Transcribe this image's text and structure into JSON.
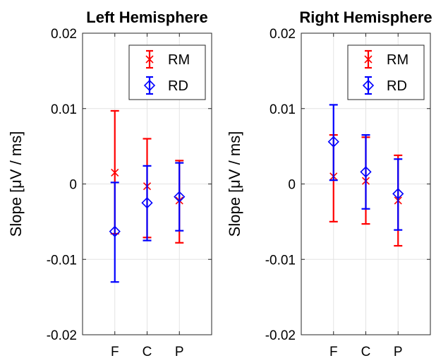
{
  "chart_data": [
    {
      "type": "scatter",
      "title": "Left Hemisphere",
      "ylabel": "Slope [μV / ms]",
      "categories": [
        "F",
        "C",
        "P"
      ],
      "ylim": [
        -0.02,
        0.02
      ],
      "yticks": [
        "0.02",
        "0.01",
        "0",
        "-0.01",
        "-0.02"
      ],
      "grid": true,
      "legend_position": "top-right",
      "series": [
        {
          "name": "RM",
          "color": "#ff0000",
          "marker": "x",
          "values": [
            0.0015,
            -0.0003,
            -0.0022
          ],
          "lower": [
            -0.0066,
            -0.0071,
            -0.0078
          ],
          "upper": [
            0.0097,
            0.006,
            0.0031
          ]
        },
        {
          "name": "RD",
          "color": "#0000ff",
          "marker": "diamond",
          "values": [
            -0.0063,
            -0.0025,
            -0.0017
          ],
          "lower": [
            -0.013,
            -0.0075,
            -0.0062
          ],
          "upper": [
            0.0002,
            0.0024,
            0.0028
          ]
        }
      ]
    },
    {
      "type": "scatter",
      "title": "Right Hemisphere",
      "ylabel": "Slope [μV / ms]",
      "categories": [
        "F",
        "C",
        "P"
      ],
      "ylim": [
        -0.02,
        0.02
      ],
      "yticks": [
        "0.02",
        "0.01",
        "0",
        "-0.01",
        "-0.02"
      ],
      "grid": true,
      "legend_position": "top-right",
      "series": [
        {
          "name": "RM",
          "color": "#ff0000",
          "marker": "x",
          "values": [
            0.001,
            0.0004,
            -0.0022
          ],
          "lower": [
            -0.005,
            -0.0053,
            -0.0082
          ],
          "upper": [
            0.0065,
            0.0062,
            0.0038
          ]
        },
        {
          "name": "RD",
          "color": "#0000ff",
          "marker": "diamond",
          "values": [
            0.0056,
            0.0016,
            -0.0013
          ],
          "lower": [
            0.0005,
            -0.0033,
            -0.0061
          ],
          "upper": [
            0.0105,
            0.0065,
            0.0033
          ]
        }
      ]
    }
  ]
}
